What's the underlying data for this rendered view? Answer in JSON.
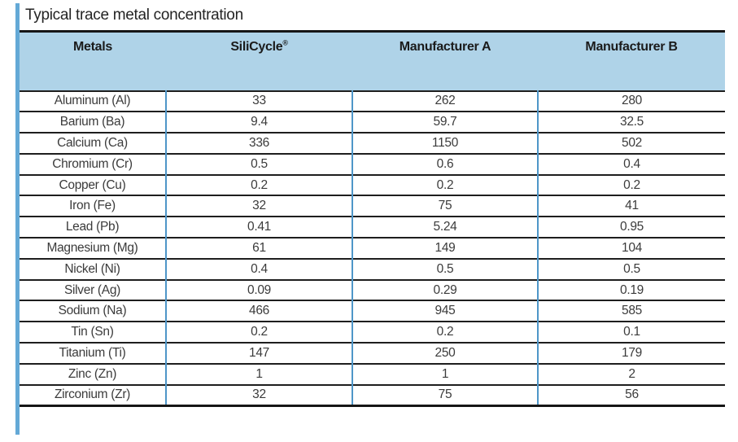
{
  "title": "Typical trace metal concentration",
  "colors": {
    "header_bg": "#AFD3E8",
    "accent_bar": "#64A9D6",
    "column_divider": "#4E96C8",
    "row_line": "#1E1E1E",
    "heavy_rule": "#161616",
    "header_text": "#1B1B1B",
    "body_text": "#3B3B3B"
  },
  "table": {
    "headers": [
      "Metals",
      "SiliCycle®",
      "Manufacturer A",
      "Manufacturer B"
    ],
    "rows": [
      [
        "Aluminum (Al)",
        "33",
        "262",
        "280"
      ],
      [
        "Barium (Ba)",
        "9.4",
        "59.7",
        "32.5"
      ],
      [
        "Calcium (Ca)",
        "336",
        "1150",
        "502"
      ],
      [
        "Chromium (Cr)",
        "0.5",
        "0.6",
        "0.4"
      ],
      [
        "Copper (Cu)",
        "0.2",
        "0.2",
        "0.2"
      ],
      [
        "Iron (Fe)",
        "32",
        "75",
        "41"
      ],
      [
        "Lead (Pb)",
        "0.41",
        "5.24",
        "0.95"
      ],
      [
        "Magnesium (Mg)",
        "61",
        "149",
        "104"
      ],
      [
        "Nickel (Ni)",
        "0.4",
        "0.5",
        "0.5"
      ],
      [
        "Silver (Ag)",
        "0.09",
        "0.29",
        "0.19"
      ],
      [
        "Sodium (Na)",
        "466",
        "945",
        "585"
      ],
      [
        "Tin (Sn)",
        "0.2",
        "0.2",
        "0.1"
      ],
      [
        "Titanium (Ti)",
        "147",
        "250",
        "179"
      ],
      [
        "Zinc (Zn)",
        "1",
        "1",
        "2"
      ],
      [
        "Zirconium (Zr)",
        "32",
        "75",
        "56"
      ]
    ]
  }
}
